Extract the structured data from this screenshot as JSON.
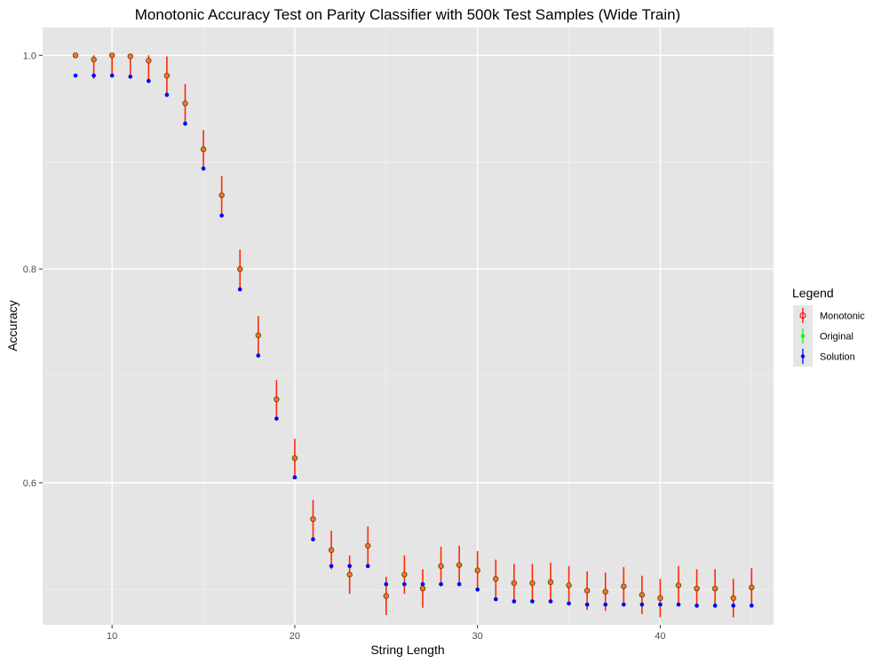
{
  "chart_data": {
    "type": "scatter",
    "title": "Monotonic Accuracy Test on Parity Classifier with 500k Test Samples (Wide Train)",
    "xlabel": "String Length",
    "ylabel": "Accuracy",
    "xlim": [
      6.2,
      46.2
    ],
    "ylim": [
      0.467,
      1.026
    ],
    "x_ticks": [
      10,
      20,
      30,
      40
    ],
    "y_ticks": [
      0.6,
      0.8,
      1.0
    ],
    "x_tick_labels": [
      "10",
      "20",
      "30",
      "40"
    ],
    "y_tick_labels": [
      "0.6",
      "0.8",
      "1.0"
    ],
    "grid": true,
    "legend_position": "right",
    "legend_title": "Legend",
    "x": [
      8,
      9,
      10,
      11,
      12,
      13,
      14,
      15,
      16,
      17,
      18,
      19,
      20,
      21,
      22,
      23,
      24,
      25,
      26,
      27,
      28,
      29,
      30,
      31,
      32,
      33,
      34,
      35,
      36,
      37,
      38,
      39,
      40,
      41,
      42,
      43,
      44,
      45
    ],
    "series": [
      {
        "name": "Monotonic",
        "color": "#ff0000",
        "marker": "open-circle",
        "values": [
          1.0,
          0.996,
          1.0,
          0.999,
          0.995,
          0.981,
          0.955,
          0.912,
          0.869,
          0.8,
          0.738,
          0.678,
          0.623,
          0.566,
          0.537,
          0.514,
          0.541,
          0.494,
          0.514,
          0.501,
          0.522,
          0.523,
          0.518,
          0.51,
          0.506,
          0.506,
          0.507,
          0.504,
          0.499,
          0.498,
          0.503,
          0.495,
          0.492,
          0.504,
          0.501,
          0.501,
          0.492,
          0.502
        ],
        "err": [
          0.001,
          0.018,
          0.018,
          0.018,
          0.018,
          0.018,
          0.018,
          0.018,
          0.018,
          0.018,
          0.018,
          0.018,
          0.018,
          0.018,
          0.018,
          0.018,
          0.018,
          0.018,
          0.018,
          0.018,
          0.018,
          0.018,
          0.018,
          0.018,
          0.018,
          0.018,
          0.018,
          0.018,
          0.018,
          0.018,
          0.018,
          0.018,
          0.018,
          0.018,
          0.018,
          0.018,
          0.018,
          0.018
        ]
      },
      {
        "name": "Original",
        "color": "#00ff00",
        "marker": "dot",
        "values": [
          0.981,
          0.981,
          0.981,
          0.98,
          0.976,
          0.963,
          0.936,
          0.894,
          0.85,
          0.781,
          0.719,
          0.66,
          0.605,
          0.547,
          0.522,
          0.522,
          0.522,
          0.505,
          0.505,
          0.505,
          0.505,
          0.505,
          0.5,
          0.491,
          0.489,
          0.489,
          0.489,
          0.487,
          0.486,
          0.486,
          0.486,
          0.486,
          0.486,
          0.486,
          0.485,
          0.485,
          0.485,
          0.485
        ],
        "err": []
      },
      {
        "name": "Solution",
        "color": "#0000ff",
        "marker": "dot",
        "values": [
          0.981,
          0.981,
          0.981,
          0.98,
          0.976,
          0.963,
          0.936,
          0.894,
          0.85,
          0.781,
          0.719,
          0.66,
          0.605,
          0.547,
          0.522,
          0.522,
          0.522,
          0.505,
          0.505,
          0.505,
          0.505,
          0.505,
          0.5,
          0.491,
          0.489,
          0.489,
          0.489,
          0.487,
          0.486,
          0.486,
          0.486,
          0.486,
          0.486,
          0.486,
          0.485,
          0.485,
          0.485,
          0.485
        ],
        "err": []
      }
    ]
  }
}
